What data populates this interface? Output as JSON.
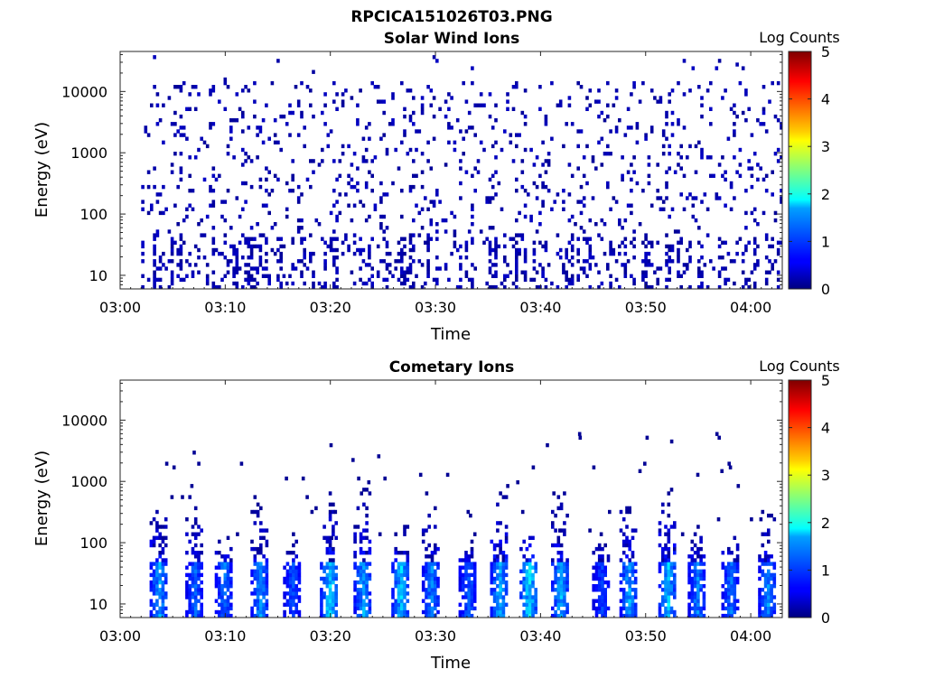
{
  "figure": {
    "title": "RPCICA151026T03.PNG"
  },
  "chart_data": [
    {
      "type": "heatmap",
      "title": "Solar Wind Ions",
      "xlabel": "Time",
      "ylabel": "Energy (eV)",
      "x_ticks": [
        "03:00",
        "03:10",
        "03:20",
        "03:30",
        "03:40",
        "03:50",
        "04:00"
      ],
      "x_range_minutes": [
        0,
        63
      ],
      "y_ticks": [
        10,
        100,
        1000,
        10000
      ],
      "y_tick_labels": [
        "10",
        "100",
        "1000",
        "10000"
      ],
      "y_scale": "log",
      "y_range": [
        6,
        45000
      ],
      "colorbar": {
        "label": "Log Counts",
        "range": [
          0,
          5
        ],
        "ticks": [
          "0",
          "1",
          "2",
          "3",
          "4",
          "5"
        ],
        "colormap": "jet"
      },
      "description_of_data": {
        "time_coverage_minutes": [
          2,
          63
        ],
        "dominant_level_log_counts": 0.1,
        "dense_band_energy_eV": [
          6,
          40
        ],
        "sparse_scatter_energy_eV": [
          40,
          15000
        ]
      }
    },
    {
      "type": "heatmap",
      "title": "Cometary Ions",
      "xlabel": "Time",
      "ylabel": "Energy (eV)",
      "x_ticks": [
        "03:00",
        "03:10",
        "03:20",
        "03:30",
        "03:40",
        "03:50",
        "04:00"
      ],
      "x_range_minutes": [
        0,
        63
      ],
      "y_ticks": [
        10,
        100,
        1000,
        10000
      ],
      "y_tick_labels": [
        "10",
        "100",
        "1000",
        "10000"
      ],
      "y_scale": "log",
      "y_range": [
        6,
        45000
      ],
      "colorbar": {
        "label": "Log Counts",
        "range": [
          0,
          5
        ],
        "ticks": [
          "0",
          "1",
          "2",
          "3",
          "4",
          "5"
        ],
        "colormap": "jet"
      },
      "bursts": [
        {
          "t": 3.6,
          "top_eV": 450,
          "peak": 1.5
        },
        {
          "t": 7.0,
          "top_eV": 800,
          "peak": 1.1
        },
        {
          "t": 9.8,
          "top_eV": 130,
          "peak": 1.2
        },
        {
          "t": 13.2,
          "top_eV": 400,
          "peak": 1.4
        },
        {
          "t": 16.3,
          "top_eV": 130,
          "peak": 1.0
        },
        {
          "t": 19.8,
          "top_eV": 700,
          "peak": 1.8
        },
        {
          "t": 23.0,
          "top_eV": 800,
          "peak": 1.5
        },
        {
          "t": 26.6,
          "top_eV": 200,
          "peak": 1.7
        },
        {
          "t": 29.5,
          "top_eV": 500,
          "peak": 1.3
        },
        {
          "t": 33.0,
          "top_eV": 130,
          "peak": 1.1
        },
        {
          "t": 36.0,
          "top_eV": 700,
          "peak": 1.6
        },
        {
          "t": 38.8,
          "top_eV": 200,
          "peak": 1.9
        },
        {
          "t": 41.8,
          "top_eV": 700,
          "peak": 1.6
        },
        {
          "t": 45.7,
          "top_eV": 130,
          "peak": 0.9
        },
        {
          "t": 48.3,
          "top_eV": 600,
          "peak": 1.5
        },
        {
          "t": 52.0,
          "top_eV": 650,
          "peak": 1.7
        },
        {
          "t": 54.8,
          "top_eV": 200,
          "peak": 1.3
        },
        {
          "t": 58.0,
          "top_eV": 150,
          "peak": 1.2
        },
        {
          "t": 61.5,
          "top_eV": 300,
          "peak": 1.4
        }
      ]
    }
  ]
}
